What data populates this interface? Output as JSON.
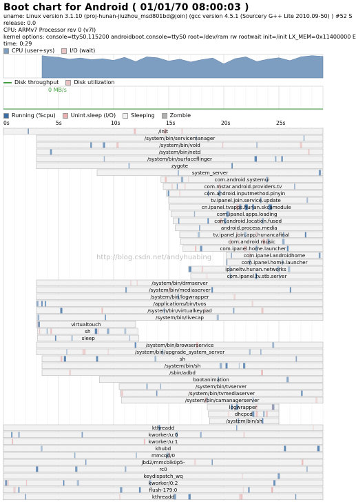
{
  "header": {
    "title": "Boot chart for Android ( 01/01/70 08:00:03 )",
    "uname": "uname: Linux version 3.1.10 (proj-hunan-jiuzhou_msd801bd@join) (gcc version 4.5.1 (Sourcery G++ Lite 2010.09-50) ) #52 S",
    "release": "release: 0.0",
    "cpu": "CPU: ARMv7 Processor rev 0 (v7l)",
    "kernel": "kernel options: console=ttyS0,115200 androidboot.console=ttyS0 root=/dev/ram rw rootwait init=/init LX_MEM=0x11400000 E",
    "time": "time: 0:29"
  },
  "cpu_legend": {
    "user": "CPU (user+sys)",
    "io": "I/O (wait)"
  },
  "disk_legend": {
    "throughput": "Disk throughput",
    "util": "Disk utilization"
  },
  "proc_legend": {
    "running": "Running (%cpu)",
    "unint": "Unint.sleep (I/O)",
    "sleeping": "Sleeping",
    "zombie": "Zombie"
  },
  "colors": {
    "cpu": "#7d9ec0",
    "io": "#eac4c4",
    "running": "#3a6ea5",
    "unint": "#e8b0b0",
    "sleep": "#f2f2f2",
    "zombie": "#b0b0b0",
    "disk": "#3f9e3f"
  },
  "watermark": "http://blog.csdn.net/andyhuabing",
  "chart_data": {
    "type": "bar",
    "title": "Boot chart for Android ( 01/01/70 08:00:03 )",
    "xlabel": "",
    "ylabel": "",
    "x_ticks": [
      "0s",
      "5s",
      "10s",
      "15s",
      "20s",
      "25s"
    ],
    "xlim": [
      0,
      29
    ],
    "disk_throughput_label": "0 MB/s",
    "cpu_series": {
      "x": [
        3.5,
        4,
        5,
        6,
        7,
        8,
        9,
        10,
        11,
        12,
        13,
        14,
        15,
        16,
        17,
        18,
        19,
        20,
        21,
        22,
        23,
        24,
        25,
        26,
        27,
        28,
        29
      ],
      "values": [
        95,
        92,
        88,
        80,
        85,
        78,
        82,
        75,
        88,
        70,
        90,
        86,
        72,
        80,
        68,
        78,
        85,
        60,
        82,
        90,
        70,
        80,
        86,
        74,
        90,
        95,
        92
      ]
    },
    "processes": [
      {
        "name": "/init",
        "start": 0.0,
        "end": 29
      },
      {
        "name": "/system/bin/servicemanager",
        "start": 3.0,
        "end": 29
      },
      {
        "name": "/system/bin/vold",
        "start": 3.0,
        "end": 29
      },
      {
        "name": "/system/bin/netd",
        "start": 3.0,
        "end": 29
      },
      {
        "name": "/system/bin/surfaceflinger",
        "start": 3.0,
        "end": 29
      },
      {
        "name": "zygote",
        "start": 3.0,
        "end": 29
      },
      {
        "name": "system_server",
        "start": 8.5,
        "end": 29
      },
      {
        "name": "com.android.systemui",
        "start": 14.3,
        "end": 29
      },
      {
        "name": "com.mstar.android.providers.tv",
        "start": 14.5,
        "end": 29
      },
      {
        "name": "com.android.inputmethod.pinyin",
        "start": 14.8,
        "end": 29
      },
      {
        "name": "tv.ipanel.join.service.update",
        "start": 15.0,
        "end": 29
      },
      {
        "name": "cn.ipanel.tvapps.hunan.skcamodule",
        "start": 15.1,
        "end": 29
      },
      {
        "name": "com.ipanel.apps.loading",
        "start": 15.2,
        "end": 29
      },
      {
        "name": "com.android.location.fused",
        "start": 15.4,
        "end": 29
      },
      {
        "name": "android.process.media",
        "start": 15.6,
        "end": 29
      },
      {
        "name": "tv.ipanel.join.app.hunancafinal",
        "start": 16.0,
        "end": 29
      },
      {
        "name": "com.android.music",
        "start": 16.1,
        "end": 29
      },
      {
        "name": "com.ipanel.home.launcher",
        "start": 16.3,
        "end": 29
      },
      {
        "name": "com.ipanel.androidhome",
        "start": 20.2,
        "end": 29
      },
      {
        "name": "com.ipanel.home.launcher",
        "start": 20.2,
        "end": 29
      },
      {
        "name": "ipaneltv.hunan.networks",
        "start": 16.8,
        "end": 29
      },
      {
        "name": "com.ipanel.tv.stb.server",
        "start": 17.0,
        "end": 29
      },
      {
        "name": "/system/bin/drmserver",
        "start": 3.0,
        "end": 29
      },
      {
        "name": "/system/bin/mediaserver",
        "start": 3.0,
        "end": 29
      },
      {
        "name": "/system/bin/logwrapper",
        "start": 3.0,
        "end": 29
      },
      {
        "name": "/applications/bin/tvos",
        "start": 3.0,
        "end": 29
      },
      {
        "name": "/system/bin/virtualkeypad",
        "start": 3.0,
        "end": 29
      },
      {
        "name": "/system/bin/livecap",
        "start": 3.0,
        "end": 29
      },
      {
        "name": "virtualtouch",
        "start": 3.0,
        "end": 12.0
      },
      {
        "name": "sh",
        "start": 3.1,
        "end": 12.2
      },
      {
        "name": "sleep",
        "start": 3.1,
        "end": 12.3
      },
      {
        "name": "/system/bin/browserservice",
        "start": 3.0,
        "end": 29
      },
      {
        "name": "/system/bin/upgrade_system_server",
        "start": 3.0,
        "end": 29
      },
      {
        "name": "sh",
        "start": 3.5,
        "end": 29
      },
      {
        "name": "/system/bin/sh",
        "start": 3.5,
        "end": 29
      },
      {
        "name": "/sbin/adbd",
        "start": 3.5,
        "end": 29
      },
      {
        "name": "bootanimation",
        "start": 8.7,
        "end": 29
      },
      {
        "name": "/system/bin/tvserver",
        "start": 10.5,
        "end": 29
      },
      {
        "name": "/system/bin/tvmediaserver",
        "start": 10.6,
        "end": 29
      },
      {
        "name": "/system/bin/camanagerserver",
        "start": 10.7,
        "end": 29
      },
      {
        "name": "logwrapper",
        "start": 18.5,
        "end": 25.0
      },
      {
        "name": "dhcpcd",
        "start": 18.6,
        "end": 25.0
      },
      {
        "name": "/system/bin/sh",
        "start": 18.7,
        "end": 25.0
      },
      {
        "name": "kthreadd",
        "start": 0.0,
        "end": 29
      },
      {
        "name": "kworker/u:0",
        "start": 0.0,
        "end": 29
      },
      {
        "name": "kworker/u:1",
        "start": 0.0,
        "end": 29
      },
      {
        "name": "khubd",
        "start": 0.0,
        "end": 29
      },
      {
        "name": "mmcqd/0",
        "start": 0.0,
        "end": 29
      },
      {
        "name": "jbd2/mmcblk0p5-",
        "start": 0.0,
        "end": 29
      },
      {
        "name": "rc0",
        "start": 0.0,
        "end": 29
      },
      {
        "name": "keydispatch_wq",
        "start": 0.0,
        "end": 29
      },
      {
        "name": "kworker/0:2",
        "start": 0.0,
        "end": 29
      },
      {
        "name": "flush-179:0",
        "start": 0.0,
        "end": 29
      },
      {
        "name": "kthreadd",
        "start": 0.0,
        "end": 29
      }
    ]
  }
}
